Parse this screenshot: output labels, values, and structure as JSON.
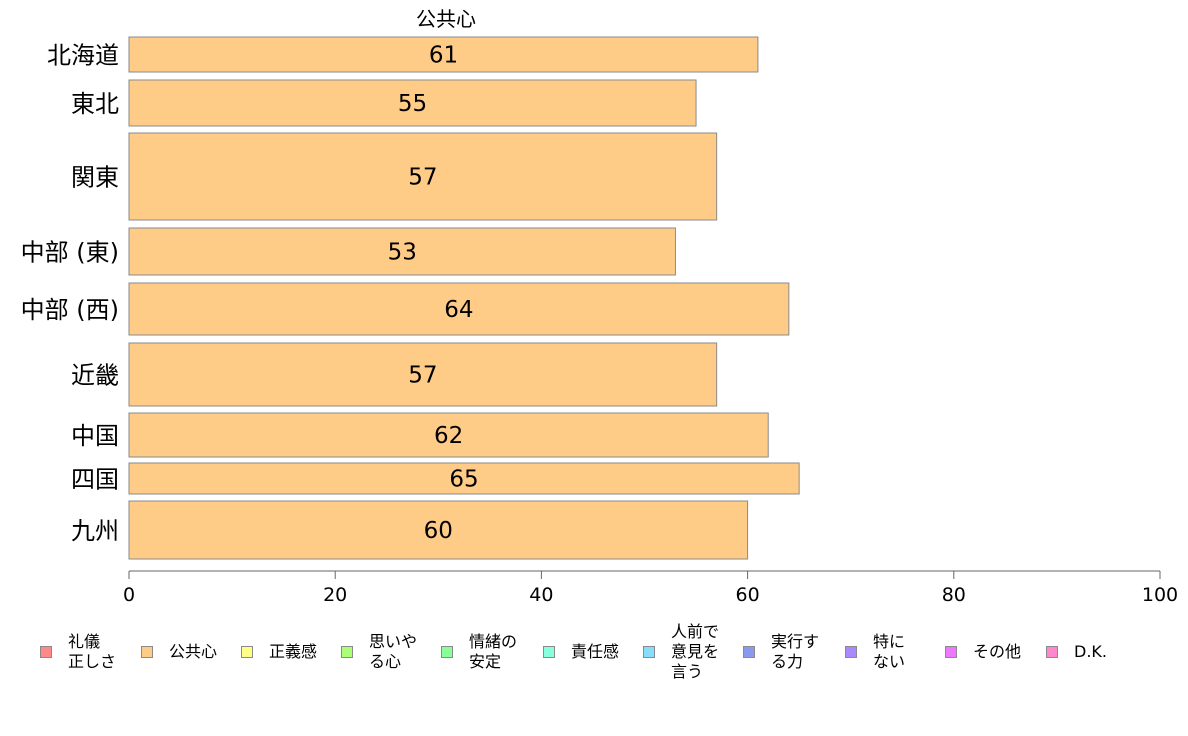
{
  "chart_data": {
    "type": "bar",
    "orientation": "horizontal",
    "series_label": "公共心",
    "categories": [
      "北海道",
      "東北",
      "関東",
      "中部 (東)",
      "中部 (西)",
      "近畿",
      "中国",
      "四国",
      "九州"
    ],
    "values": [
      61,
      55,
      57,
      53,
      64,
      57,
      62,
      65,
      60
    ],
    "data_labels": [
      "61",
      "55",
      "57",
      "53",
      "64",
      "57",
      "62",
      "65",
      "60"
    ],
    "bar_color": "#FFCC88",
    "bar_border_color": "#8a8a8a",
    "xlim": [
      0,
      100
    ],
    "x_ticks": [
      "0",
      "20",
      "40",
      "60",
      "80",
      "100"
    ],
    "grid": false,
    "legend_position": "bottom",
    "legend": [
      {
        "label": "礼儀\n正しさ",
        "color": "#FF8888"
      },
      {
        "label": "公共心",
        "color": "#FFCC88"
      },
      {
        "label": "正義感",
        "color": "#FFFF88"
      },
      {
        "label": "思いや\nる心",
        "color": "#AAFF77"
      },
      {
        "label": "情緒の\n安定",
        "color": "#88FF99"
      },
      {
        "label": "責任感",
        "color": "#88FFDD"
      },
      {
        "label": "人前で\n意見を\n言う",
        "color": "#88DDFF"
      },
      {
        "label": "実行す\nる力",
        "color": "#8899EE"
      },
      {
        "label": "特に\nない",
        "color": "#AA88FF"
      },
      {
        "label": "その他",
        "color": "#EE77FF"
      },
      {
        "label": "D.K.",
        "color": "#FF88CC"
      }
    ]
  }
}
